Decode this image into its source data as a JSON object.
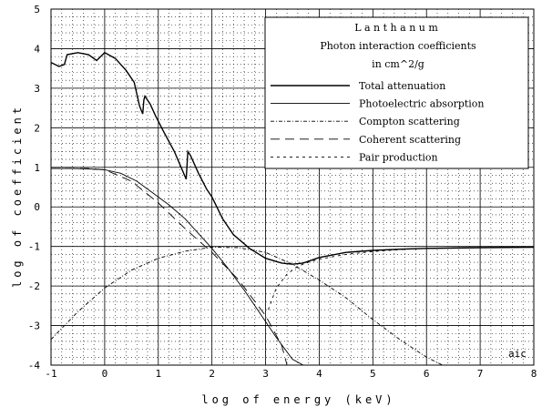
{
  "chart_data": {
    "type": "line",
    "xlabel": "log of energy (keV)",
    "ylabel": "log of coefficient",
    "xlim": [
      -1,
      8
    ],
    "ylim": [
      -4,
      5
    ],
    "xticks": [
      "-1",
      "0",
      "1",
      "2",
      "3",
      "4",
      "5",
      "6",
      "7",
      "8"
    ],
    "yticks": [
      "5",
      "4",
      "3",
      "2",
      "1",
      "0",
      "-1",
      "-2",
      "-3",
      "-4"
    ],
    "grid": true,
    "legend_position": "top-right",
    "legend": {
      "title": "L a n t h a n u m",
      "subtitle1": "Photon interaction coefficients",
      "subtitle2": "in cm^2/g"
    },
    "corner_text": "aic",
    "series": [
      {
        "name": "Total attenuation",
        "dash": "solid",
        "x": [
          -1.0,
          -0.85,
          -0.75,
          -0.7,
          -0.5,
          -0.3,
          -0.15,
          0.0,
          0.2,
          0.4,
          0.55,
          0.65,
          0.68,
          0.71,
          0.73,
          0.75,
          0.85,
          0.95,
          1.1,
          1.3,
          1.52,
          1.55,
          1.6,
          1.75,
          1.9,
          2.0,
          2.2,
          2.4,
          2.7,
          3.0,
          3.3,
          3.5,
          3.7,
          4.0,
          4.5,
          5.0,
          5.5,
          6.0,
          7.0,
          8.0
        ],
        "y": [
          3.65,
          3.55,
          3.6,
          3.85,
          3.9,
          3.85,
          3.7,
          3.9,
          3.75,
          3.45,
          3.15,
          2.55,
          2.45,
          2.35,
          2.7,
          2.8,
          2.6,
          2.3,
          1.9,
          1.4,
          0.7,
          1.4,
          1.3,
          0.85,
          0.45,
          0.25,
          -0.3,
          -0.7,
          -1.05,
          -1.3,
          -1.42,
          -1.45,
          -1.42,
          -1.28,
          -1.15,
          -1.1,
          -1.07,
          -1.05,
          -1.03,
          -1.02
        ]
      },
      {
        "name": "Photoelectric absorption",
        "dash": "solid-thin",
        "x": [
          -1.0,
          -0.6,
          -0.3,
          0.0,
          0.3,
          0.6,
          0.9,
          1.2,
          1.5,
          1.8,
          2.0,
          2.3,
          2.6,
          2.9,
          3.2,
          3.5,
          3.7
        ],
        "y": [
          0.97,
          0.97,
          0.96,
          0.94,
          0.85,
          0.65,
          0.35,
          0.05,
          -0.3,
          -0.75,
          -1.05,
          -1.55,
          -2.1,
          -2.7,
          -3.3,
          -3.85,
          -4.0
        ]
      },
      {
        "name": "Compton scattering",
        "dash": "dot-dash",
        "x": [
          -1.0,
          -0.5,
          0.0,
          0.5,
          1.0,
          1.5,
          2.0,
          2.5,
          3.0,
          3.5,
          4.0,
          4.5,
          5.0,
          5.5,
          6.0,
          6.3
        ],
        "y": [
          -3.35,
          -2.65,
          -2.05,
          -1.6,
          -1.3,
          -1.12,
          -1.02,
          -1.03,
          -1.15,
          -1.45,
          -1.85,
          -2.3,
          -2.85,
          -3.35,
          -3.8,
          -4.0
        ]
      },
      {
        "name": "Coherent scattering",
        "dash": "long-dash",
        "x": [
          -1.0,
          -0.3,
          0.0,
          0.5,
          1.0,
          1.5,
          2.0,
          2.5,
          3.0,
          3.3,
          3.4
        ],
        "y": [
          0.97,
          0.97,
          0.94,
          0.65,
          0.1,
          -0.55,
          -1.15,
          -1.85,
          -2.75,
          -3.5,
          -4.0
        ]
      },
      {
        "name": "Pair production",
        "dash": "short-dash",
        "x": [
          3.05,
          3.2,
          3.4,
          3.6,
          3.8,
          4.0,
          4.5,
          5.0,
          5.5,
          6.0,
          7.0,
          8.0
        ],
        "y": [
          -2.6,
          -2.05,
          -1.7,
          -1.5,
          -1.4,
          -1.32,
          -1.2,
          -1.13,
          -1.08,
          -1.05,
          -1.03,
          -1.02
        ]
      }
    ]
  }
}
